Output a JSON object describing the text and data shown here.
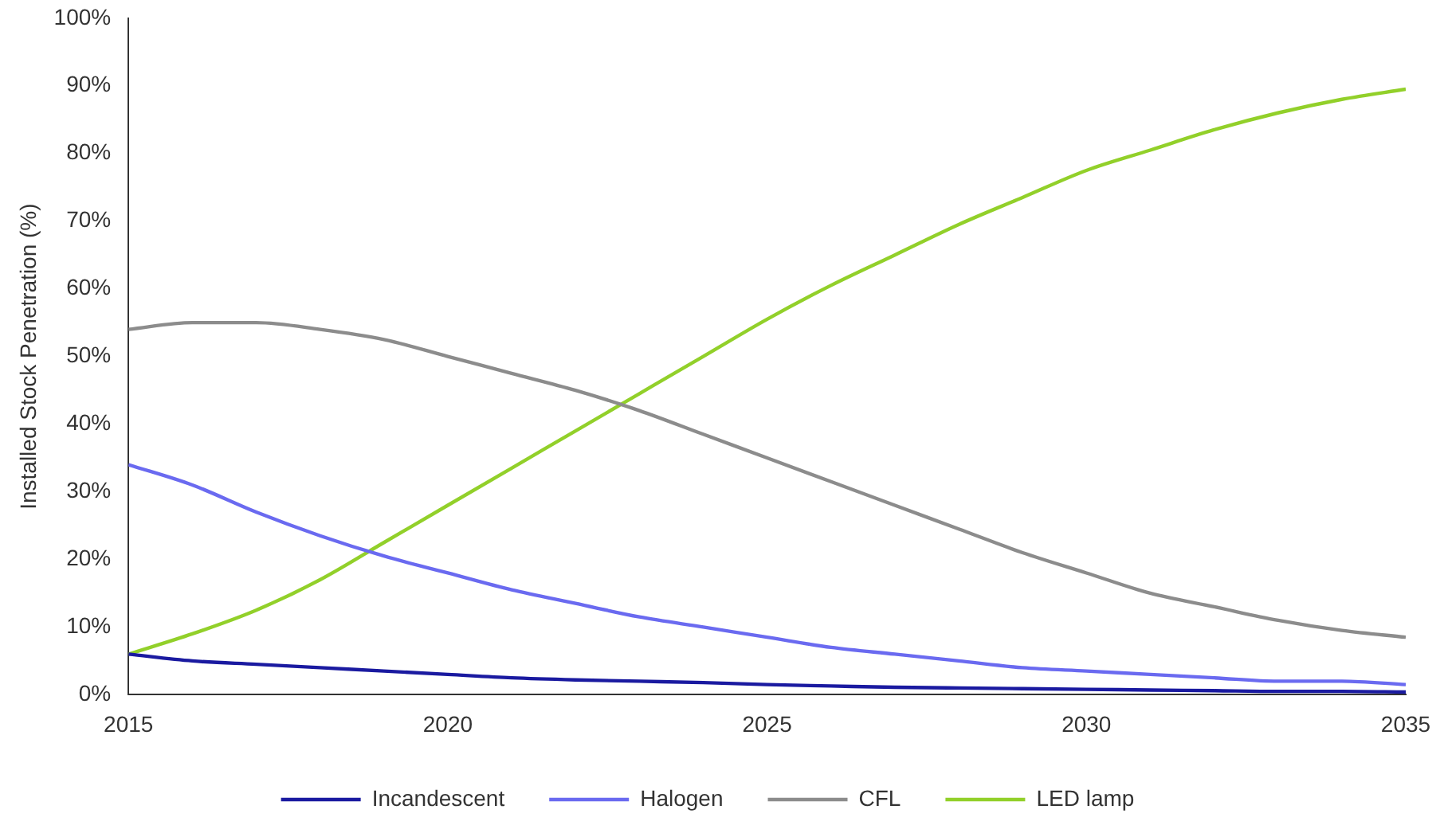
{
  "chart_data": {
    "type": "line",
    "ylabel": "Installed Stock Penetration (%)",
    "x": [
      2015,
      2016,
      2017,
      2018,
      2019,
      2020,
      2021,
      2022,
      2023,
      2024,
      2025,
      2026,
      2027,
      2028,
      2029,
      2030,
      2031,
      2032,
      2033,
      2034,
      2035
    ],
    "series": [
      {
        "name": "Incandescent",
        "color": "#1a1aa0",
        "values": [
          6,
          5,
          4.5,
          4,
          3.5,
          3,
          2.5,
          2.2,
          2,
          1.8,
          1.5,
          1.3,
          1.1,
          1,
          0.9,
          0.8,
          0.7,
          0.6,
          0.5,
          0.5,
          0.4
        ]
      },
      {
        "name": "Halogen",
        "color": "#6a6af0",
        "values": [
          34,
          31,
          27,
          23.5,
          20.5,
          18,
          15.5,
          13.5,
          11.5,
          10,
          8.5,
          7,
          6,
          5,
          4,
          3.5,
          3,
          2.5,
          2,
          2,
          1.5
        ]
      },
      {
        "name": "CFL",
        "color": "#8c8c8c",
        "values": [
          54,
          55,
          55,
          54,
          52.5,
          50,
          47.5,
          45,
          42,
          38.5,
          35,
          31.5,
          28,
          24.5,
          21,
          18,
          15,
          13,
          11,
          9.5,
          8.5
        ]
      },
      {
        "name": "LED lamp",
        "color": "#92d02a",
        "values": [
          6,
          9,
          12.5,
          17,
          22.5,
          28,
          33.5,
          39,
          44.5,
          50,
          55.5,
          60.5,
          65,
          69.5,
          73.5,
          77.5,
          80.5,
          83.5,
          86,
          88,
          89.5
        ]
      }
    ],
    "xlim": [
      2015,
      2035
    ],
    "xticks": [
      2015,
      2020,
      2025,
      2030,
      2035
    ],
    "ylim": [
      0,
      100
    ],
    "yticks": [
      {
        "value": 0,
        "label": "0%"
      },
      {
        "value": 10,
        "label": "10%"
      },
      {
        "value": 20,
        "label": "20%"
      },
      {
        "value": 30,
        "label": "30%"
      },
      {
        "value": 40,
        "label": "40%"
      },
      {
        "value": 50,
        "label": "50%"
      },
      {
        "value": 60,
        "label": "60%"
      },
      {
        "value": 70,
        "label": "70%"
      },
      {
        "value": 80,
        "label": "80%"
      },
      {
        "value": 90,
        "label": "90%"
      },
      {
        "value": 100,
        "label": "100%"
      }
    ],
    "grid": false,
    "legend": "bottom",
    "marker": "none",
    "line_style": "solid"
  }
}
